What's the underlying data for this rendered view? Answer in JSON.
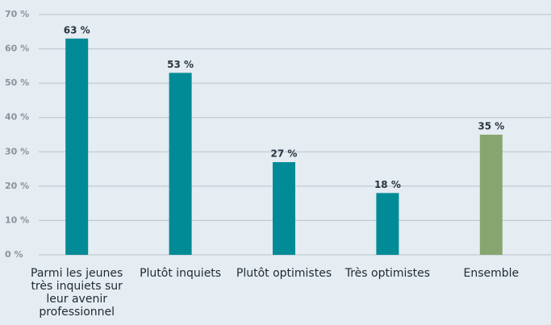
{
  "chart_data": {
    "type": "bar",
    "categories": [
      "Parmi les jeunes très inquiets sur leur avenir professionnel",
      "Plutôt inquiets",
      "Plutôt optimistes",
      "Très optimistes",
      "Ensemble"
    ],
    "values": [
      63,
      53,
      27,
      18,
      35
    ],
    "value_labels": [
      "63 %",
      "53 %",
      "27 %",
      "18 %",
      "35 %"
    ],
    "colors": [
      "#008b96",
      "#008b96",
      "#008b96",
      "#008b96",
      "#87a66f"
    ],
    "ylim": [
      0,
      70
    ],
    "yticks": [
      {
        "value": 0,
        "label": "0 %"
      },
      {
        "value": 10,
        "label": "10 %"
      },
      {
        "value": 20,
        "label": "20 %"
      },
      {
        "value": 30,
        "label": "30 %"
      },
      {
        "value": 40,
        "label": "40 %"
      },
      {
        "value": 50,
        "label": "50 %"
      },
      {
        "value": 60,
        "label": "60 %"
      },
      {
        "value": 70,
        "label": "70 %"
      }
    ],
    "grid": true
  }
}
